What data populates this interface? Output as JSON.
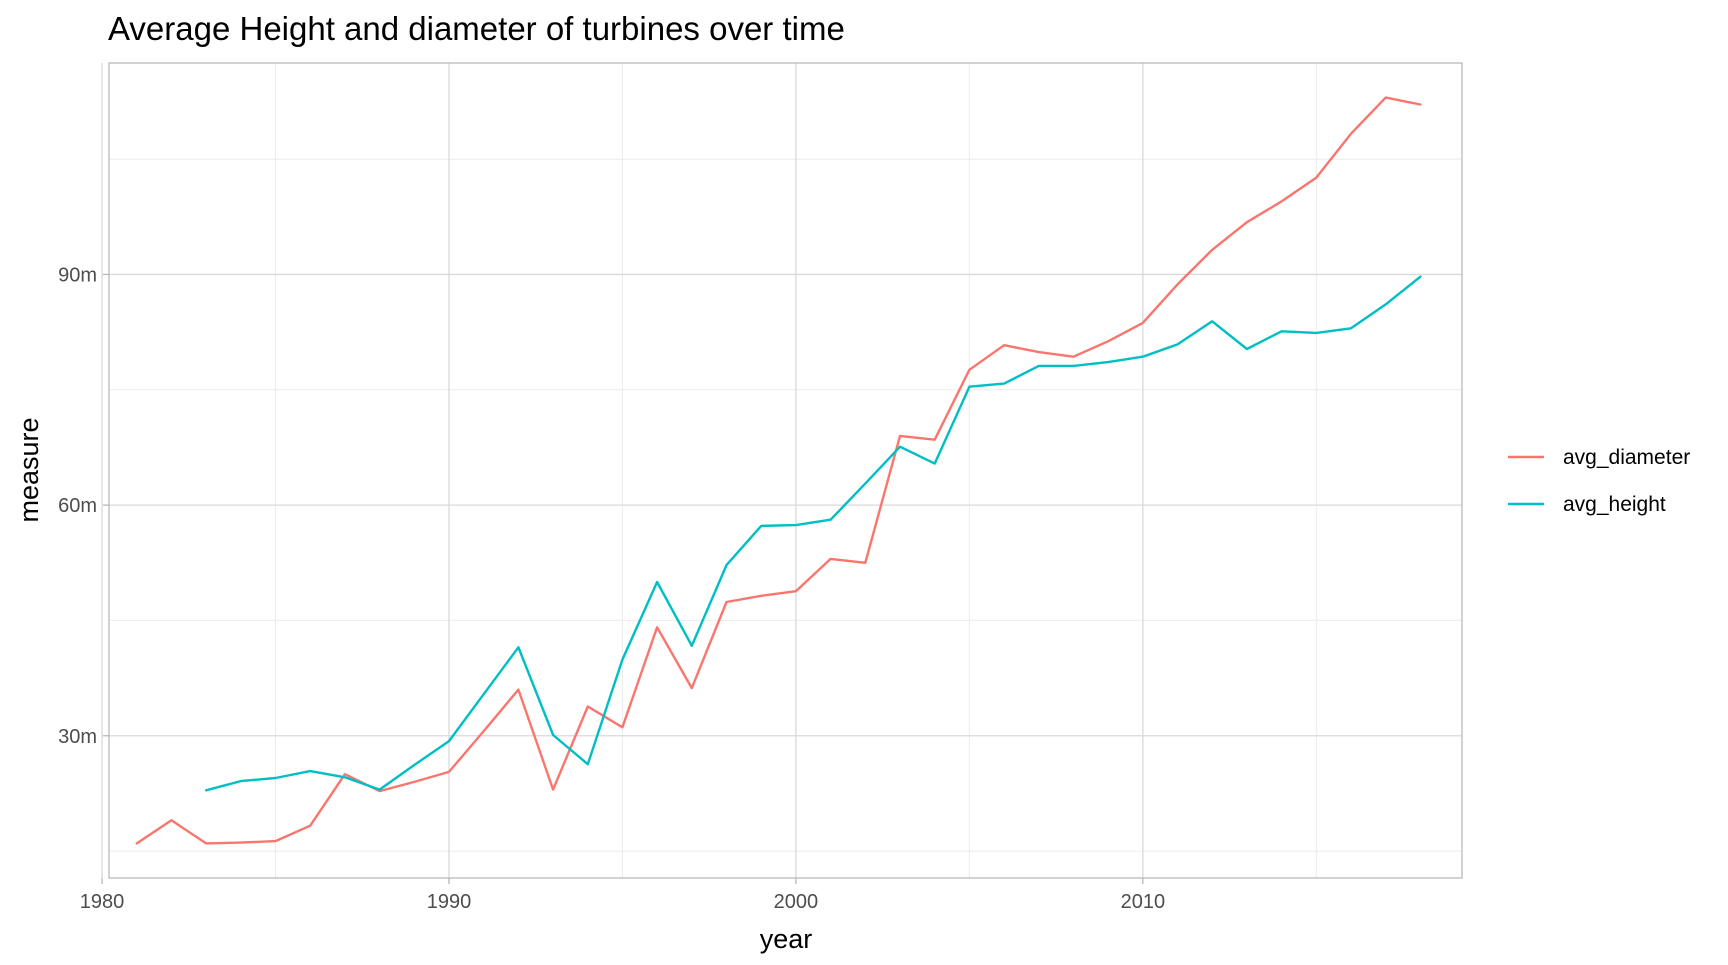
{
  "chart_data": {
    "type": "line",
    "title": "Average Height and diameter of turbines over time",
    "xlabel": "year",
    "ylabel": "measure",
    "xlim": [
      1980.2,
      2019.2
    ],
    "ylim": [
      11.5,
      117.5
    ],
    "x_ticks": [
      {
        "value": 1980,
        "label": "1980"
      },
      {
        "value": 1990,
        "label": "1990"
      },
      {
        "value": 2000,
        "label": "2000"
      },
      {
        "value": 2010,
        "label": "2010"
      }
    ],
    "y_ticks": [
      {
        "value": 30,
        "label": "30m"
      },
      {
        "value": 60,
        "label": "60m"
      },
      {
        "value": 90,
        "label": "90m"
      }
    ],
    "x_minor": [
      1985,
      1995,
      2005,
      2015
    ],
    "y_minor": [
      15,
      45,
      75,
      105
    ],
    "grid": true,
    "legend_position": "right",
    "series": [
      {
        "name": "avg_diameter",
        "color": "#F8766D",
        "x": [
          1981,
          1982,
          1983,
          1984,
          1985,
          1986,
          1987,
          1988,
          1989,
          1990,
          1991,
          1992,
          1993,
          1994,
          1995,
          1996,
          1997,
          1998,
          1999,
          2000,
          2001,
          2002,
          2003,
          2004,
          2005,
          2006,
          2007,
          2008,
          2009,
          2010,
          2011,
          2012,
          2013,
          2014,
          2015,
          2016,
          2017,
          2018
        ],
        "y": [
          16.0,
          19.0,
          16.0,
          16.1,
          16.3,
          18.3,
          25.0,
          22.8,
          24.0,
          25.3,
          30.6,
          36.0,
          23.0,
          33.8,
          31.1,
          44.1,
          36.2,
          47.4,
          48.2,
          48.8,
          53.0,
          52.5,
          69.0,
          68.5,
          77.6,
          80.8,
          79.9,
          79.3,
          81.3,
          83.7,
          88.7,
          93.2,
          96.8,
          99.5,
          102.6,
          108.3,
          113.0,
          112.1
        ]
      },
      {
        "name": "avg_height",
        "color": "#00BFC4",
        "x": [
          1983,
          1984,
          1985,
          1986,
          1987,
          1988,
          1989,
          1990,
          1991,
          1992,
          1993,
          1994,
          1995,
          1996,
          1997,
          1998,
          1999,
          2000,
          2001,
          2002,
          2003,
          2004,
          2005,
          2006,
          2007,
          2008,
          2009,
          2010,
          2011,
          2012,
          2013,
          2014,
          2015,
          2016,
          2017,
          2018
        ],
        "y": [
          22.9,
          24.1,
          24.5,
          25.4,
          24.6,
          23.0,
          26.2,
          29.3,
          35.4,
          41.5,
          30.1,
          26.3,
          39.9,
          50.0,
          41.7,
          52.2,
          57.3,
          57.4,
          58.1,
          62.8,
          67.6,
          65.4,
          75.4,
          75.8,
          78.1,
          78.1,
          78.6,
          79.3,
          80.9,
          83.9,
          80.3,
          82.6,
          82.4,
          83.0,
          86.1,
          89.7
        ]
      }
    ]
  }
}
